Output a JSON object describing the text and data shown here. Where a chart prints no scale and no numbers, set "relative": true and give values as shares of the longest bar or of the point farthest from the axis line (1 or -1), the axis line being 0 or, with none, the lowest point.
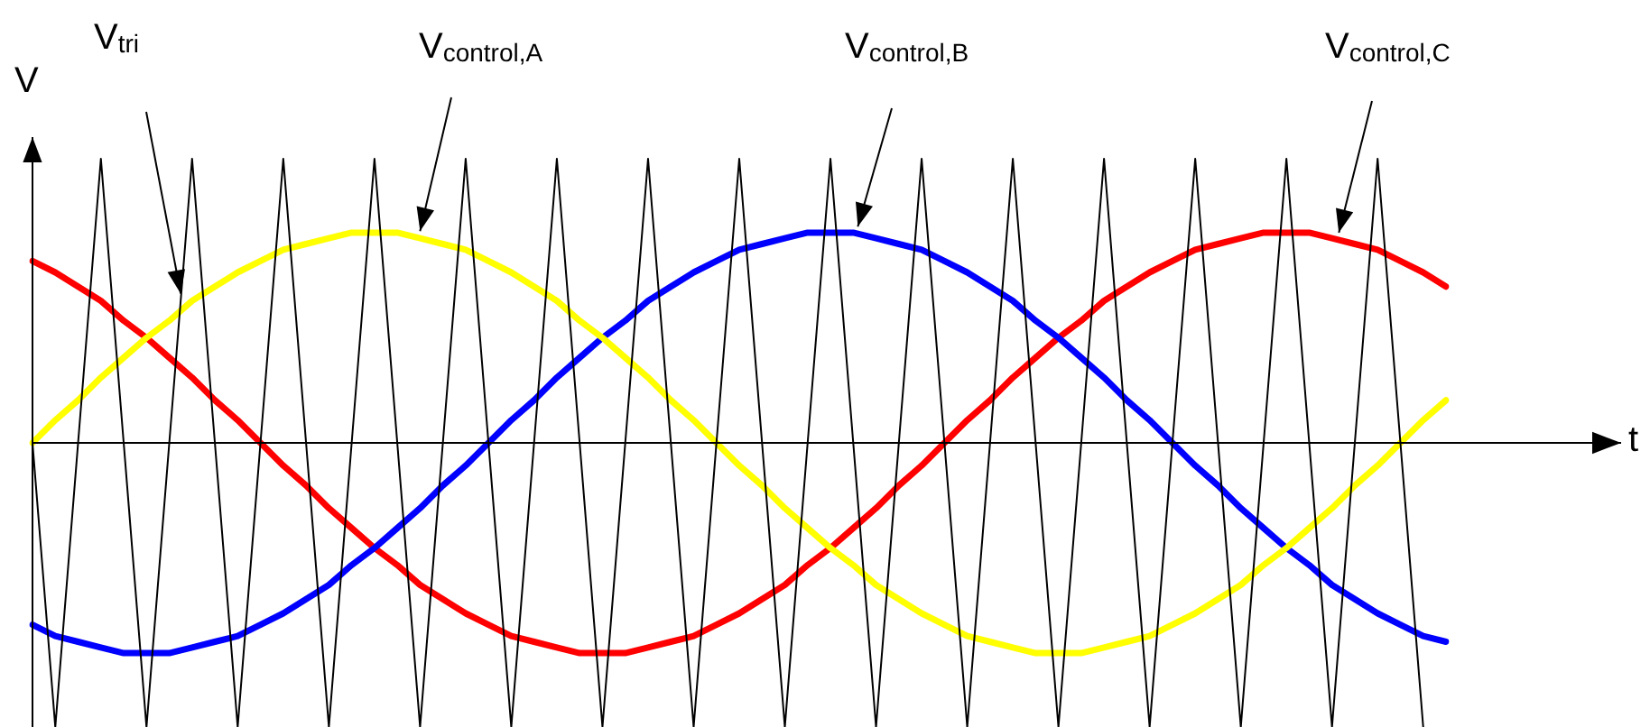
{
  "chart_data": {
    "type": "line",
    "relative": true,
    "xlabel": "t",
    "ylabel": "V",
    "legend": false,
    "marker": "none",
    "line_style": "solid",
    "categories": [
      null,
      null,
      null,
      null,
      null,
      null,
      null,
      null,
      null,
      null,
      null,
      null,
      null,
      null,
      null,
      null,
      null,
      null,
      null,
      null,
      null,
      null,
      null,
      null,
      null,
      null,
      null,
      null,
      null,
      null,
      null,
      null,
      null,
      null,
      null,
      null,
      null,
      null,
      null,
      null,
      null,
      null,
      null,
      null,
      null,
      null,
      null,
      null,
      null,
      null,
      null,
      null,
      null,
      null,
      null,
      null,
      null,
      null,
      null,
      null,
      null,
      null,
      null
    ],
    "series": [
      {
        "name": "V$_{tri}$",
        "color": "#000000",
        "values": [
          0,
          -1,
          0,
          1,
          0,
          -1,
          0,
          1,
          0,
          -1,
          0,
          1,
          0,
          -1,
          0,
          1,
          0,
          -1,
          0,
          1,
          0,
          -1,
          0,
          1,
          0,
          -1,
          0,
          1,
          0,
          -1,
          0,
          1,
          0,
          -1,
          0,
          1,
          0,
          -1,
          0,
          1,
          0,
          -1,
          0,
          1,
          0,
          -1,
          0,
          1,
          0,
          -1,
          0,
          1,
          0,
          -1,
          0,
          1,
          0,
          -1,
          0,
          1,
          0,
          -1,
          null
        ]
      },
      {
        "name": "V$_{control,A}$",
        "color": "#ffff00",
        "values": [
          0,
          0.08,
          0.15,
          0.23,
          0.3,
          0.37,
          0.43,
          0.5,
          0.55,
          0.6,
          0.64,
          0.68,
          0.7,
          0.72,
          0.74,
          0.74,
          0.74,
          0.72,
          0.7,
          0.68,
          0.64,
          0.6,
          0.55,
          0.5,
          0.43,
          0.37,
          0.3,
          0.23,
          0.15,
          0.08,
          0,
          -0.08,
          -0.15,
          -0.23,
          -0.3,
          -0.37,
          -0.43,
          -0.5,
          -0.55,
          -0.6,
          -0.64,
          -0.68,
          -0.7,
          -0.72,
          -0.74,
          -0.74,
          -0.74,
          -0.72,
          -0.7,
          -0.68,
          -0.64,
          -0.6,
          -0.55,
          -0.5,
          -0.43,
          -0.37,
          -0.3,
          -0.23,
          -0.15,
          -0.08,
          0,
          0.08,
          0.15
        ]
      },
      {
        "name": "V$_{control,B}$",
        "color": "#0000ff",
        "values": [
          -0.64,
          -0.68,
          -0.7,
          -0.72,
          -0.74,
          -0.74,
          -0.74,
          -0.72,
          -0.7,
          -0.68,
          -0.64,
          -0.6,
          -0.55,
          -0.5,
          -0.43,
          -0.37,
          -0.3,
          -0.23,
          -0.15,
          -0.08,
          0,
          0.08,
          0.15,
          0.23,
          0.3,
          0.37,
          0.43,
          0.5,
          0.55,
          0.6,
          0.64,
          0.68,
          0.7,
          0.72,
          0.74,
          0.74,
          0.74,
          0.72,
          0.7,
          0.68,
          0.64,
          0.6,
          0.55,
          0.5,
          0.43,
          0.37,
          0.3,
          0.23,
          0.15,
          0.08,
          0,
          -0.08,
          -0.15,
          -0.23,
          -0.3,
          -0.37,
          -0.43,
          -0.5,
          -0.55,
          -0.6,
          -0.64,
          -0.68,
          -0.7
        ]
      },
      {
        "name": "V$_{control,C}$",
        "color": "#ff0000",
        "values": [
          0.64,
          0.6,
          0.55,
          0.5,
          0.43,
          0.37,
          0.3,
          0.23,
          0.15,
          0.08,
          0,
          -0.08,
          -0.15,
          -0.23,
          -0.3,
          -0.37,
          -0.43,
          -0.5,
          -0.55,
          -0.6,
          -0.64,
          -0.68,
          -0.7,
          -0.72,
          -0.74,
          -0.74,
          -0.74,
          -0.72,
          -0.7,
          -0.68,
          -0.64,
          -0.6,
          -0.55,
          -0.5,
          -0.43,
          -0.37,
          -0.3,
          -0.23,
          -0.15,
          -0.08,
          0,
          0.08,
          0.15,
          0.23,
          0.3,
          0.37,
          0.43,
          0.5,
          0.55,
          0.6,
          0.64,
          0.68,
          0.7,
          0.72,
          0.74,
          0.74,
          0.74,
          0.72,
          0.7,
          0.68,
          0.64,
          0.6,
          0.55
        ]
      }
    ]
  }
}
